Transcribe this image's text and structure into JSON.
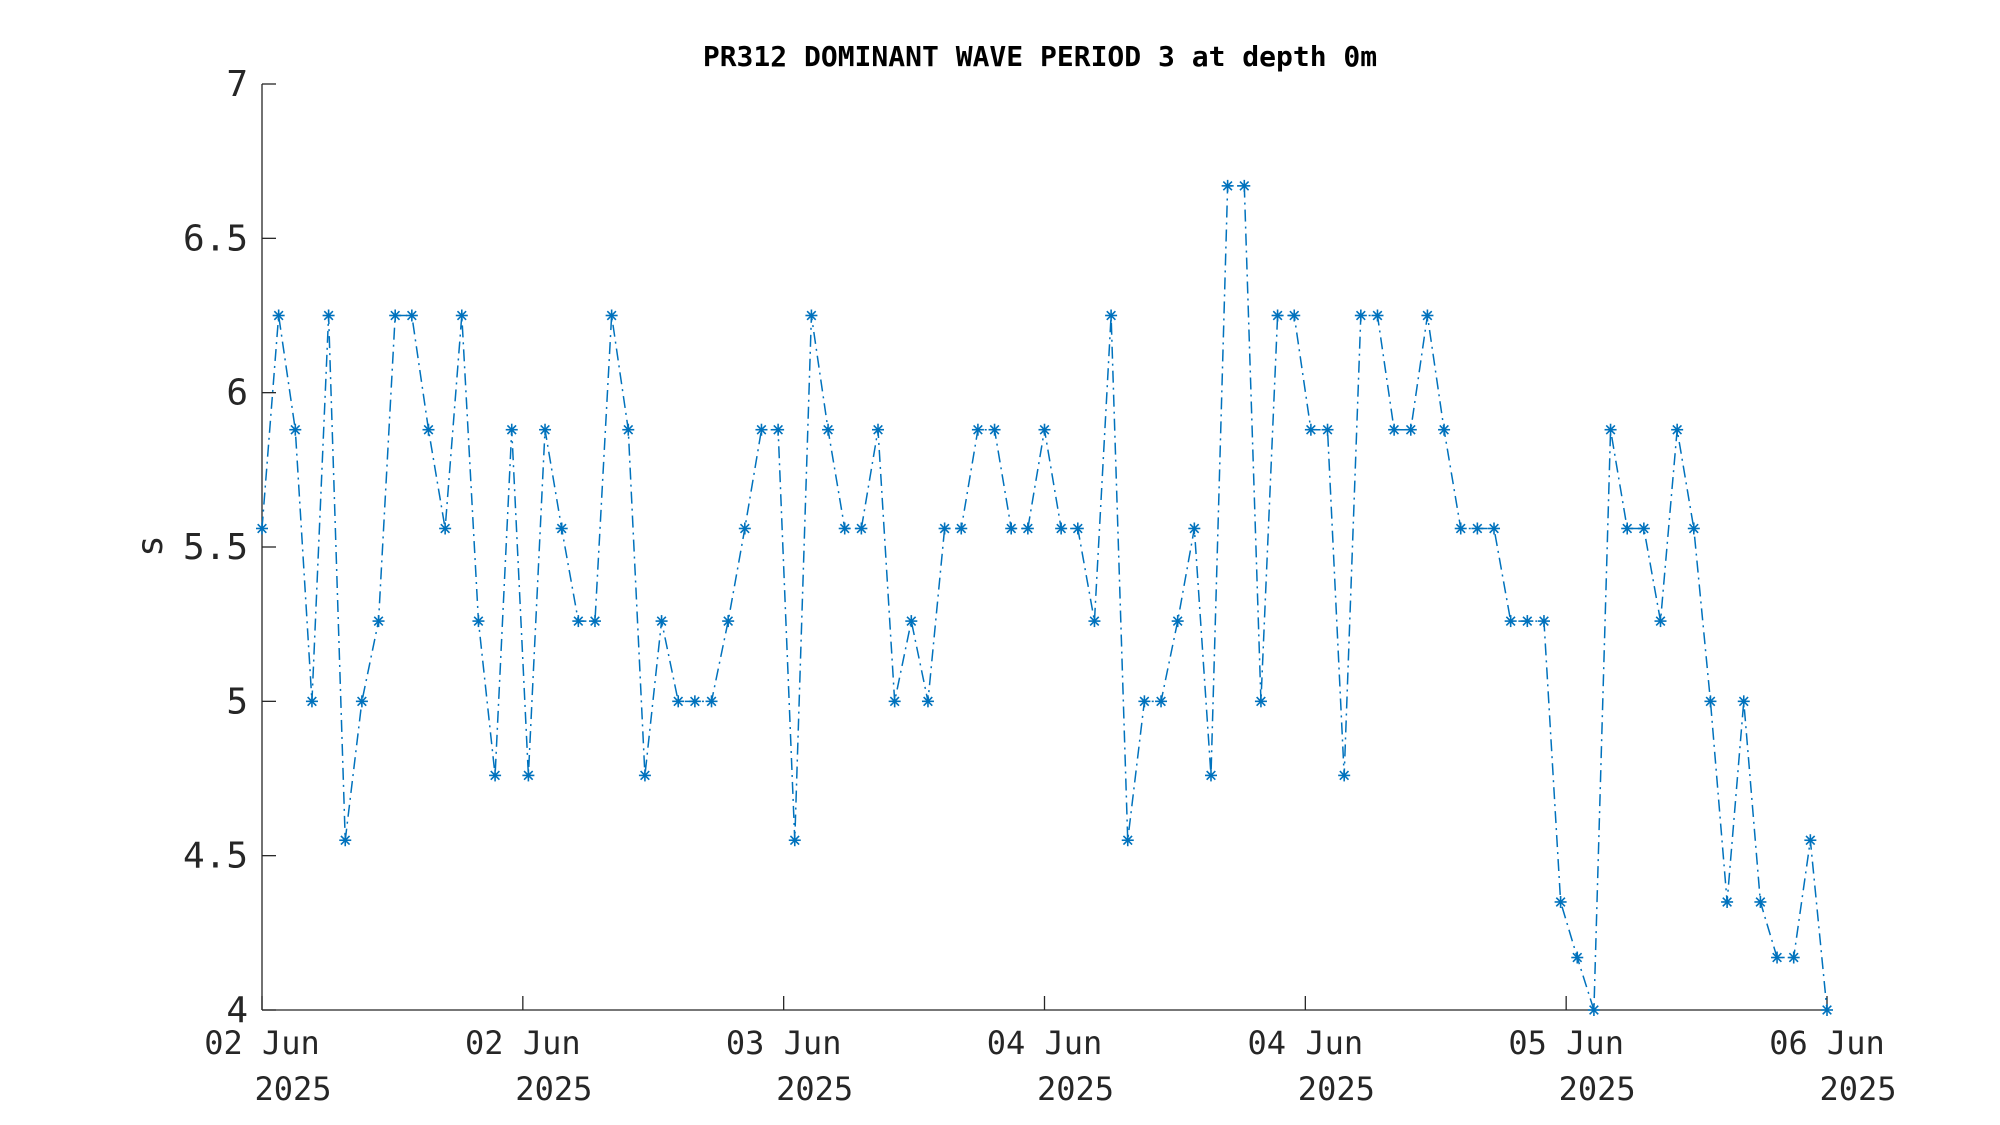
{
  "chart_data": {
    "type": "line",
    "title": "PR312 DOMINANT WAVE PERIOD 3 at depth 0m",
    "ylabel": "s",
    "xlabel": "",
    "ylim": [
      4,
      7
    ],
    "yticks": [
      4,
      4.5,
      5,
      5.5,
      6,
      6.5,
      7
    ],
    "ytick_labels": [
      "4",
      "4.5",
      "5",
      "5.5",
      "6",
      "6.5",
      "7"
    ],
    "xlim_hours": [
      0,
      96
    ],
    "xticks": [
      {
        "line1": "02 Jun",
        "line2": "2025",
        "hour": 0
      },
      {
        "line1": "02 Jun",
        "line2": "2025",
        "hour": 16
      },
      {
        "line1": "03 Jun",
        "line2": "2025",
        "hour": 32
      },
      {
        "line1": "04 Jun",
        "line2": "2025",
        "hour": 48
      },
      {
        "line1": "04 Jun",
        "line2": "2025",
        "hour": 64
      },
      {
        "line1": "05 Jun",
        "line2": "2025",
        "hour": 80
      },
      {
        "line1": "06 Jun",
        "line2": "2025",
        "hour": 96
      }
    ],
    "grid": false,
    "series": [
      {
        "color": "#0072BD",
        "marker": "asterisk",
        "line_style": "dash-dot",
        "values": [
          5.56,
          6.25,
          5.88,
          5.0,
          6.25,
          4.55,
          5.0,
          5.26,
          6.25,
          6.25,
          5.88,
          5.56,
          6.25,
          5.26,
          4.76,
          5.88,
          4.76,
          5.88,
          5.56,
          5.26,
          5.26,
          6.25,
          5.88,
          4.76,
          5.26,
          5.0,
          5.0,
          5.0,
          5.26,
          5.56,
          5.88,
          5.88,
          4.55,
          6.25,
          5.88,
          5.56,
          5.56,
          5.88,
          5.0,
          5.26,
          5.0,
          5.56,
          5.56,
          5.88,
          5.88,
          5.56,
          5.56,
          5.88,
          5.56,
          5.56,
          5.26,
          6.25,
          4.55,
          5.0,
          5.0,
          5.26,
          5.56,
          4.76,
          6.67,
          6.67,
          5.0,
          6.25,
          6.25,
          5.88,
          5.88,
          4.76,
          6.25,
          6.25,
          5.88,
          5.88,
          6.25,
          5.88,
          5.56,
          5.56,
          5.56,
          5.26,
          5.26,
          5.26,
          4.35,
          4.17,
          4.0,
          5.88,
          5.56,
          5.56,
          5.26,
          5.88,
          5.56,
          5.0,
          4.35,
          5.0,
          4.35,
          4.17,
          4.17,
          4.55,
          4.0
        ]
      }
    ]
  }
}
